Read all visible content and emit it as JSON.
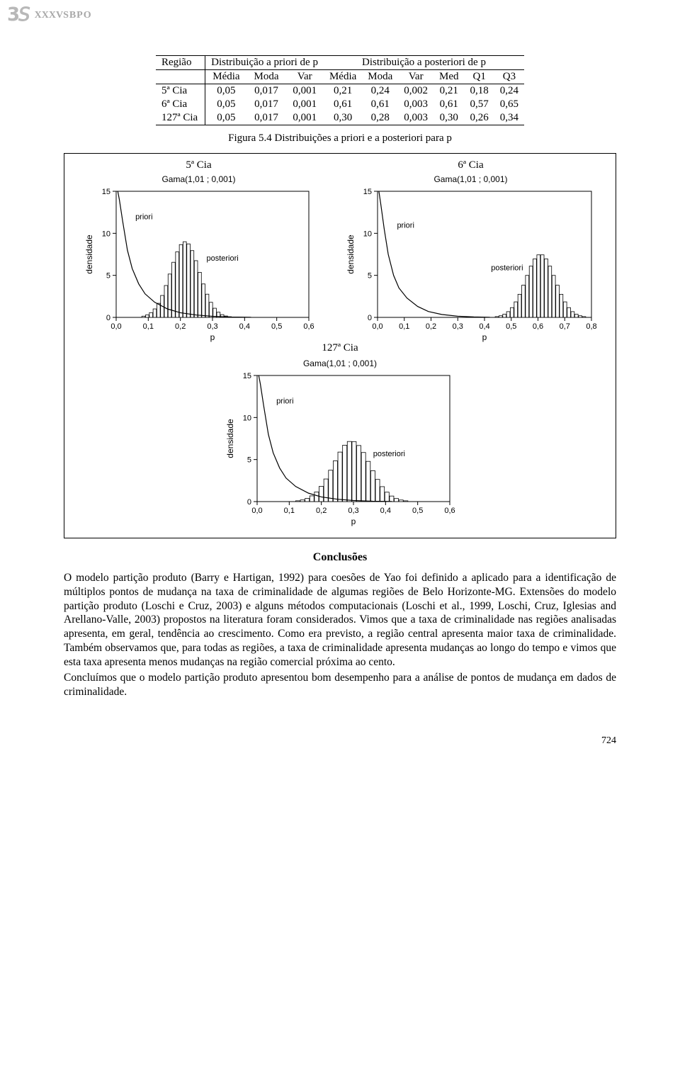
{
  "header": {
    "logo_swirl": "35",
    "roman": "XXXV",
    "sbpo": "SBPO"
  },
  "table": {
    "header_top": [
      "Região",
      "Distribuição a priori de p",
      "Distribuição a posteriori de p"
    ],
    "header_sub": [
      "",
      "Média",
      "Moda",
      "Var",
      "Média",
      "Moda",
      "Var",
      "Med",
      "Q1",
      "Q3"
    ],
    "rows": [
      [
        "5ª Cia",
        "0,05",
        "0,017",
        "0,001",
        "0,21",
        "0,24",
        "0,002",
        "0,21",
        "0,18",
        "0,24"
      ],
      [
        "6ª Cia",
        "0,05",
        "0,017",
        "0,001",
        "0,61",
        "0,61",
        "0,003",
        "0,61",
        "0,57",
        "0,65"
      ],
      [
        "127ª Cia",
        "0,05",
        "0,017",
        "0,001",
        "0,30",
        "0,28",
        "0,003",
        "0,30",
        "0,26",
        "0,34"
      ]
    ]
  },
  "figure_caption": "Figura 5.4 Distribuições a priori e a posteriori para p",
  "charts": {
    "chart_a": {
      "title": "5ª Cia",
      "subtitle": "Gama(1,01 ; 0,001)",
      "ylabel": "densidade",
      "xlabel": "p",
      "xlim": [
        0.0,
        0.6
      ],
      "xticks": [
        "0,0",
        "0,1",
        "0,2",
        "0,3",
        "0,4",
        "0,5",
        "0,6"
      ],
      "ylim": [
        0,
        15
      ],
      "yticks": [
        "0",
        "5",
        "10",
        "15"
      ],
      "priori_label": "priori",
      "posteriori_label": "posteriori",
      "priori_points": [
        [
          0.005,
          15
        ],
        [
          0.01,
          14
        ],
        [
          0.02,
          11.5
        ],
        [
          0.035,
          8
        ],
        [
          0.05,
          5.8
        ],
        [
          0.07,
          4.0
        ],
        [
          0.09,
          2.8
        ],
        [
          0.12,
          1.8
        ],
        [
          0.16,
          1.0
        ],
        [
          0.2,
          0.55
        ],
        [
          0.25,
          0.28
        ],
        [
          0.3,
          0.13
        ],
        [
          0.36,
          0.04
        ],
        [
          0.42,
          0.01
        ]
      ],
      "hist_center": 0.215,
      "hist_sd": 0.045,
      "hist_bins": 24,
      "hist_xmin": 0.08,
      "hist_xmax": 0.36,
      "hist_peak": 9.0,
      "colors": {
        "axis": "#000000",
        "line": "#000000",
        "bar_fill": "#ffffff",
        "bar_stroke": "#000000",
        "bg": "#ffffff"
      }
    },
    "chart_b": {
      "title": "6ª Cia",
      "subtitle": "Gama(1,01 ; 0,001)",
      "ylabel": "densidade",
      "xlabel": "p",
      "xlim": [
        0.0,
        0.8
      ],
      "xticks": [
        "0,0",
        "0,1",
        "0,2",
        "0,3",
        "0,4",
        "0,5",
        "0,6",
        "0,7",
        "0,8"
      ],
      "ylim": [
        0,
        15
      ],
      "yticks": [
        "0",
        "5",
        "10",
        "15"
      ],
      "priori_label": "priori",
      "posteriori_label": "posteriori",
      "priori_points": [
        [
          0.005,
          15
        ],
        [
          0.012,
          13.5
        ],
        [
          0.025,
          10.5
        ],
        [
          0.04,
          7.5
        ],
        [
          0.06,
          5.0
        ],
        [
          0.08,
          3.5
        ],
        [
          0.11,
          2.3
        ],
        [
          0.15,
          1.3
        ],
        [
          0.19,
          0.7
        ],
        [
          0.24,
          0.35
        ],
        [
          0.3,
          0.14
        ],
        [
          0.36,
          0.05
        ],
        [
          0.42,
          0.015
        ]
      ],
      "hist_center": 0.61,
      "hist_sd": 0.055,
      "hist_bins": 24,
      "hist_xmin": 0.44,
      "hist_xmax": 0.78,
      "hist_peak": 7.5,
      "colors": {
        "axis": "#000000",
        "line": "#000000",
        "bar_fill": "#ffffff",
        "bar_stroke": "#000000",
        "bg": "#ffffff"
      }
    },
    "chart_c": {
      "title": "127ª Cia",
      "subtitle": "Gama(1,01 ; 0,001)",
      "ylabel": "densidade",
      "xlabel": "p",
      "xlim": [
        0.0,
        0.6
      ],
      "xticks": [
        "0,0",
        "0,1",
        "0,2",
        "0,3",
        "0,4",
        "0,5",
        "0,6"
      ],
      "ylim": [
        0,
        15
      ],
      "yticks": [
        "0",
        "5",
        "10",
        "15"
      ],
      "priori_label": "priori",
      "posteriori_label": "posteriori",
      "priori_points": [
        [
          0.005,
          15
        ],
        [
          0.01,
          14
        ],
        [
          0.02,
          11.5
        ],
        [
          0.035,
          8
        ],
        [
          0.05,
          5.8
        ],
        [
          0.07,
          4.0
        ],
        [
          0.09,
          2.8
        ],
        [
          0.12,
          1.8
        ],
        [
          0.16,
          1.0
        ],
        [
          0.2,
          0.55
        ],
        [
          0.25,
          0.28
        ],
        [
          0.3,
          0.13
        ],
        [
          0.36,
          0.04
        ],
        [
          0.42,
          0.01
        ]
      ],
      "hist_center": 0.295,
      "hist_sd": 0.057,
      "hist_bins": 26,
      "hist_xmin": 0.12,
      "hist_xmax": 0.5,
      "hist_peak": 7.2,
      "colors": {
        "axis": "#000000",
        "line": "#000000",
        "bar_fill": "#ffffff",
        "bar_stroke": "#000000",
        "bg": "#ffffff"
      }
    },
    "between_label": "127ª Cia"
  },
  "conclusion": {
    "heading": "Conclusões",
    "para1": "O modelo partição produto (Barry e Hartigan, 1992) para coesões de Yao foi definido a aplicado para a identificação de múltiplos pontos de mudança na taxa de criminalidade de algumas regiões de Belo Horizonte-MG. Extensões do modelo partição produto (Loschi e Cruz, 2003) e alguns métodos computacionais (Loschi et al., 1999, Loschi, Cruz, Iglesias and Arellano-Valle, 2003) propostos na literatura foram considerados. Vimos que a taxa de criminalidade nas regiões analisadas apresenta, em geral, tendência ao crescimento. Como era previsto, a região central apresenta maior taxa de criminalidade. Também observamos que, para todas as regiões, a taxa de criminalidade apresenta mudanças ao longo do tempo e vimos que esta taxa apresenta menos mudanças na região comercial próxima ao cento.",
    "para2": "Concluímos que o modelo partição produto apresentou bom desempenho para a análise de pontos de mudança em dados de criminalidade."
  },
  "page_number": "724"
}
